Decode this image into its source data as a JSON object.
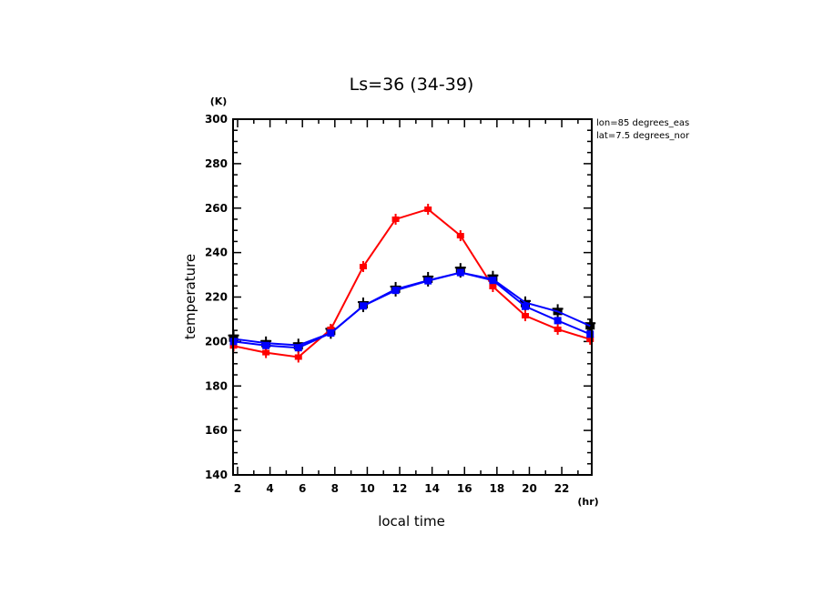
{
  "chart_data": {
    "type": "line",
    "title": "Ls=36 (34-39)",
    "xlabel": "local time",
    "ylabel": "temperature",
    "x_unit": "(hr)",
    "y_unit": "(K)",
    "xlim": [
      1.72,
      23.85
    ],
    "ylim": [
      140,
      300
    ],
    "xticks": [
      2,
      4,
      6,
      8,
      10,
      12,
      14,
      16,
      18,
      20,
      22
    ],
    "yticks": [
      140,
      160,
      180,
      200,
      220,
      240,
      260,
      280,
      300
    ],
    "grid": false,
    "annotations": [
      "lon=85 degrees_eas",
      "lat=7.5 degrees_nor"
    ],
    "x": [
      1.75,
      3.75,
      5.75,
      7.75,
      9.75,
      11.75,
      13.75,
      15.75,
      17.75,
      19.75,
      21.75,
      23.75
    ],
    "series": [
      {
        "name": "red",
        "color": "#ff0000",
        "values": [
          198,
          195,
          193,
          205.5,
          233.7,
          255,
          259.5,
          247.6,
          224.7,
          211.6,
          205.5,
          201
        ]
      },
      {
        "name": "blue-upper",
        "color": "#0000ff",
        "values": [
          201.2,
          199.3,
          198.3,
          203.8,
          216,
          223.5,
          227.5,
          231,
          228,
          217.5,
          213.5,
          207
        ]
      },
      {
        "name": "blue-lower",
        "color": "#0000ff",
        "values": [
          200,
          198.2,
          197.2,
          203.8,
          216,
          223,
          227.3,
          231,
          227.5,
          215.8,
          209.4,
          203.3
        ]
      }
    ],
    "markers": {
      "name": "black-observations",
      "color": "#000000",
      "values": [
        201.5,
        199,
        198,
        204.5,
        216.5,
        223.5,
        228,
        232,
        228.5,
        217,
        213.5,
        207
      ]
    }
  }
}
